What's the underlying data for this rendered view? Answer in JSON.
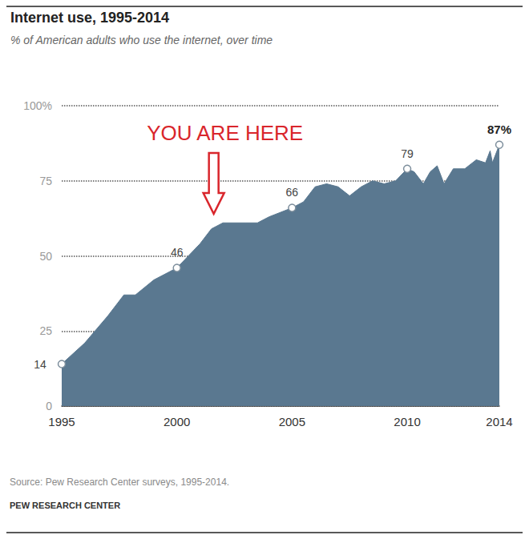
{
  "chart_data": {
    "type": "area",
    "title": "Internet use, 1995-2014",
    "subtitle": "% of American adults who use the internet, over time",
    "source": "Source: Pew Research Center surveys, 1995-2014.",
    "footer": "PEW RESEARCH CENTER",
    "x": [
      1995,
      1996,
      1997,
      1997.7,
      1998.2,
      1999,
      2000,
      2000.5,
      2001,
      2001.5,
      2002,
      2003,
      2003.5,
      2004,
      2005,
      2005.5,
      2006,
      2006.5,
      2007,
      2007.5,
      2008,
      2008.5,
      2009,
      2009.5,
      2010,
      2010.3,
      2010.7,
      2011,
      2011.3,
      2011.6,
      2012,
      2012.5,
      2013,
      2013.4,
      2013.6,
      2013.7,
      2014
    ],
    "values": [
      14,
      21,
      30,
      37,
      37,
      42,
      46,
      50,
      54,
      59,
      61,
      61,
      61,
      63,
      66,
      68,
      73,
      74,
      73,
      70,
      73,
      75,
      74,
      75,
      79,
      78,
      74,
      78,
      80,
      74,
      79,
      79,
      82,
      81,
      85,
      81,
      87
    ],
    "value_labels": [
      "14",
      null,
      null,
      null,
      null,
      null,
      "46",
      null,
      null,
      null,
      null,
      null,
      null,
      null,
      "66",
      null,
      null,
      null,
      null,
      null,
      null,
      null,
      null,
      null,
      "79",
      null,
      null,
      null,
      null,
      null,
      null,
      null,
      null,
      null,
      null,
      null,
      "87%"
    ],
    "data_labels": true,
    "marker": "circle",
    "color": "#5a7890",
    "xlim": [
      1995,
      2014
    ],
    "xticks": [
      1995,
      2000,
      2005,
      2010,
      2014
    ],
    "ylim": [
      0,
      100
    ],
    "yticks": [
      0,
      25,
      50,
      75,
      {
        "value": 100,
        "label": "100%"
      }
    ],
    "grid": true,
    "annotations": [
      {
        "text": "YOU ARE HERE",
        "x": 2001.6,
        "y": 64
      }
    ]
  }
}
